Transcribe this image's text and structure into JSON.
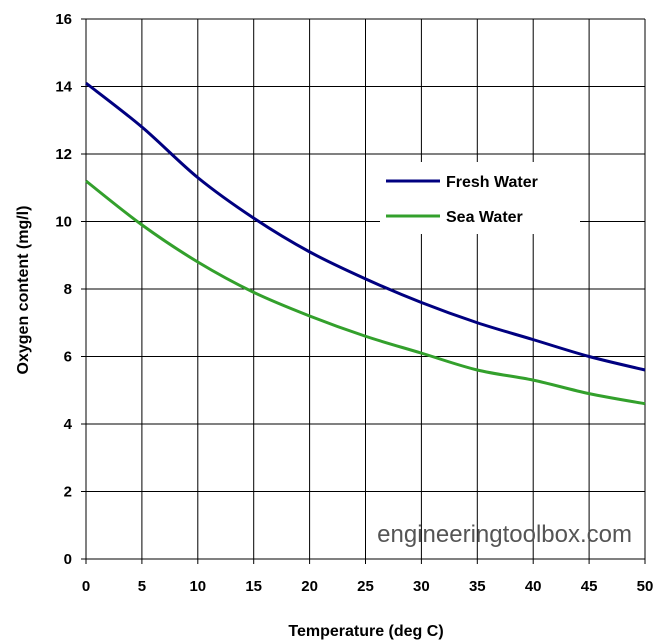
{
  "chart_data": {
    "type": "line",
    "title": "",
    "xlabel": "Temperature (deg C)",
    "ylabel": "Oxygen content (mg/l)",
    "xlim": [
      0,
      50
    ],
    "ylim": [
      0,
      16
    ],
    "xticks": [
      0,
      5,
      10,
      15,
      20,
      25,
      30,
      35,
      40,
      45,
      50
    ],
    "yticks": [
      0,
      2,
      4,
      6,
      8,
      10,
      12,
      14,
      16
    ],
    "grid": true,
    "legend_position": "top-right",
    "x": [
      0,
      5,
      10,
      15,
      20,
      25,
      30,
      35,
      40,
      45,
      50
    ],
    "series": [
      {
        "name": "Fresh Water",
        "color": "#000080",
        "values": [
          14.1,
          12.8,
          11.3,
          10.1,
          9.1,
          8.3,
          7.6,
          7.0,
          6.5,
          6.0,
          5.6
        ]
      },
      {
        "name": "Sea Water",
        "color": "#33a02c",
        "values": [
          11.2,
          9.9,
          8.8,
          7.9,
          7.2,
          6.6,
          6.1,
          5.6,
          5.3,
          4.9,
          4.6
        ]
      }
    ],
    "watermark": "engineeringtoolbox.com"
  }
}
